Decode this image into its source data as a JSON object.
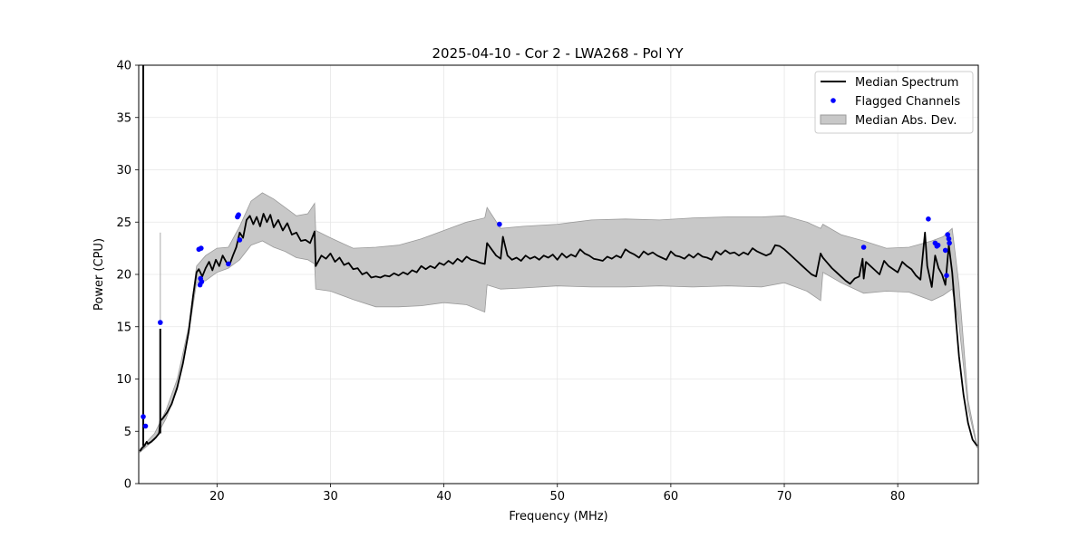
{
  "chart_data": {
    "type": "line",
    "title": "2025-04-10 - Cor 2 - LWA268 - Pol YY",
    "xlabel": "Frequency (MHz)",
    "ylabel": "Power (CPU)",
    "xlim": [
      13.1,
      87.1
    ],
    "ylim": [
      0,
      40
    ],
    "xticks": [
      20,
      30,
      40,
      50,
      60,
      70,
      80
    ],
    "yticks": [
      0,
      5,
      10,
      15,
      20,
      25,
      30,
      35,
      40
    ],
    "grid": true,
    "legend_position": "top-right",
    "legend": [
      {
        "label": "Median Spectrum",
        "kind": "line",
        "color": "#000000"
      },
      {
        "label": "Flagged Channels",
        "kind": "scatter",
        "color": "#0000ff"
      },
      {
        "label": "Median Abs. Dev.",
        "kind": "fill",
        "color": "#b0b0b0"
      }
    ],
    "series": [
      {
        "name": "Median Spectrum",
        "kind": "line",
        "color": "#000000",
        "x": [
          13.2,
          13.4,
          13.6,
          13.7,
          13.8,
          13.9,
          14.2,
          14.6,
          14.9,
          15.0,
          15.2,
          15.6,
          16.0,
          16.5,
          17.0,
          17.5,
          17.9,
          18.2,
          18.4,
          18.7,
          19.0,
          19.3,
          19.6,
          19.9,
          20.2,
          20.5,
          20.8,
          21.1,
          21.4,
          21.7,
          22.0,
          22.3,
          22.6,
          22.9,
          23.2,
          23.5,
          23.8,
          24.1,
          24.4,
          24.7,
          25.0,
          25.4,
          25.8,
          26.2,
          26.6,
          27.0,
          27.4,
          27.8,
          28.2,
          28.6,
          28.7,
          29.2,
          29.6,
          30.0,
          30.4,
          30.8,
          31.2,
          31.6,
          32.0,
          32.4,
          32.8,
          33.2,
          33.6,
          34.0,
          34.4,
          34.8,
          35.2,
          35.6,
          36.0,
          36.4,
          36.8,
          37.2,
          37.6,
          38.0,
          38.4,
          38.8,
          39.2,
          39.6,
          40.0,
          40.4,
          40.8,
          41.2,
          41.6,
          42.0,
          42.4,
          42.8,
          43.2,
          43.6,
          43.8,
          44.2,
          44.6,
          45.0,
          45.2,
          45.6,
          46.0,
          46.4,
          46.8,
          47.2,
          47.6,
          48.0,
          48.4,
          48.8,
          49.2,
          49.6,
          50.0,
          50.4,
          50.8,
          51.2,
          51.6,
          52.0,
          52.4,
          52.8,
          53.2,
          53.6,
          54.0,
          54.4,
          54.8,
          55.2,
          55.6,
          56.0,
          56.4,
          56.8,
          57.2,
          57.6,
          58.0,
          58.4,
          58.8,
          59.2,
          59.6,
          60.0,
          60.4,
          60.8,
          61.2,
          61.6,
          62.0,
          62.4,
          62.8,
          63.2,
          63.6,
          64.0,
          64.4,
          64.8,
          65.2,
          65.6,
          66.0,
          66.4,
          66.8,
          67.2,
          67.6,
          68.0,
          68.4,
          68.8,
          69.2,
          69.6,
          70.0,
          70.4,
          70.8,
          71.2,
          71.6,
          72.0,
          72.4,
          72.8,
          73.2,
          73.4,
          73.8,
          74.2,
          74.6,
          75.0,
          75.4,
          75.8,
          76.2,
          76.6,
          76.9,
          77.0,
          77.2,
          77.6,
          78.0,
          78.4,
          78.8,
          79.2,
          79.6,
          80.0,
          80.4,
          80.8,
          81.2,
          81.6,
          82.0,
          82.4,
          82.6,
          82.8,
          83.0,
          83.3,
          83.6,
          83.9,
          84.2,
          84.5,
          84.8,
          85.1,
          85.4,
          85.8,
          86.2,
          86.6,
          87.0
        ],
        "y": [
          3.1,
          3.4,
          3.6,
          3.8,
          4.0,
          3.8,
          4.0,
          4.4,
          4.8,
          6.0,
          6.2,
          6.8,
          7.6,
          9.2,
          11.5,
          14.5,
          18.0,
          20.2,
          20.5,
          19.8,
          20.6,
          21.2,
          20.4,
          21.4,
          20.8,
          21.8,
          21.2,
          20.9,
          21.8,
          22.6,
          24.0,
          23.5,
          25.2,
          25.6,
          24.8,
          25.5,
          24.6,
          25.8,
          25.0,
          25.7,
          24.5,
          25.2,
          24.2,
          24.9,
          23.8,
          24.0,
          23.2,
          23.3,
          23.0,
          24.1,
          20.8,
          21.8,
          21.5,
          22.0,
          21.2,
          21.6,
          20.9,
          21.1,
          20.5,
          20.6,
          20.0,
          20.2,
          19.7,
          19.8,
          19.7,
          19.9,
          19.8,
          20.1,
          19.9,
          20.2,
          20.0,
          20.4,
          20.2,
          20.8,
          20.5,
          20.8,
          20.6,
          21.1,
          20.9,
          21.3,
          21.0,
          21.5,
          21.2,
          21.7,
          21.4,
          21.3,
          21.1,
          21.0,
          23.0,
          22.4,
          21.8,
          21.5,
          23.6,
          21.8,
          21.4,
          21.6,
          21.3,
          21.8,
          21.5,
          21.7,
          21.4,
          21.8,
          21.6,
          21.9,
          21.4,
          22.0,
          21.6,
          21.9,
          21.7,
          22.4,
          22.0,
          21.8,
          21.5,
          21.4,
          21.3,
          21.7,
          21.5,
          21.8,
          21.6,
          22.4,
          22.1,
          21.9,
          21.6,
          22.2,
          21.9,
          22.1,
          21.8,
          21.6,
          21.4,
          22.2,
          21.8,
          21.7,
          21.5,
          21.9,
          21.6,
          22.0,
          21.7,
          21.6,
          21.4,
          22.2,
          21.9,
          22.3,
          22.0,
          22.1,
          21.8,
          22.1,
          21.9,
          22.5,
          22.2,
          22.0,
          21.8,
          22.0,
          22.8,
          22.7,
          22.4,
          22.0,
          21.6,
          21.2,
          20.8,
          20.4,
          20.0,
          19.8,
          22.0,
          21.6,
          21.1,
          20.6,
          20.2,
          19.8,
          19.4,
          19.1,
          19.6,
          19.8,
          21.5,
          19.6,
          21.2,
          20.8,
          20.4,
          20.0,
          21.3,
          20.8,
          20.5,
          20.2,
          21.2,
          20.8,
          20.5,
          19.9,
          19.5,
          24.0,
          20.8,
          19.8,
          18.8,
          21.8,
          20.6,
          20.0,
          19.0,
          22.8,
          20.2,
          16.0,
          12.2,
          8.5,
          5.8,
          4.2,
          3.6
        ]
      },
      {
        "name": "Median Abs. Dev.",
        "kind": "fill",
        "color": "#b0b0b0",
        "x": [
          13.2,
          14.5,
          15.5,
          16.5,
          17.5,
          18.2,
          19.0,
          20.0,
          21.0,
          22.0,
          23.0,
          24.0,
          25.0,
          26.0,
          27.0,
          28.0,
          28.6,
          28.7,
          30.0,
          32.0,
          34.0,
          36.0,
          38.0,
          40.0,
          42.0,
          43.6,
          43.8,
          45.0,
          47.0,
          50.0,
          53.0,
          56.0,
          59.0,
          62.0,
          65.0,
          68.0,
          70.0,
          72.0,
          73.2,
          73.4,
          75.0,
          77.0,
          79.0,
          81.0,
          83.0,
          84.0,
          84.8,
          85.4,
          86.2,
          87.0
        ],
        "lower": [
          3.0,
          4.2,
          6.2,
          9.0,
          14.3,
          19.2,
          19.4,
          20.2,
          20.6,
          21.4,
          22.8,
          23.2,
          22.6,
          22.2,
          21.6,
          21.4,
          21.0,
          18.6,
          18.4,
          17.6,
          16.9,
          16.9,
          17.0,
          17.3,
          17.1,
          16.4,
          19.0,
          18.6,
          18.7,
          18.9,
          18.8,
          18.8,
          18.9,
          18.8,
          18.9,
          18.8,
          19.2,
          18.4,
          17.5,
          20.2,
          19.2,
          18.2,
          18.4,
          18.3,
          17.5,
          18.0,
          18.6,
          15.2,
          7.2,
          3.4
        ],
        "upper": [
          3.3,
          4.8,
          7.0,
          10.0,
          15.0,
          20.8,
          21.8,
          22.5,
          22.6,
          24.6,
          27.0,
          27.8,
          27.2,
          26.4,
          25.6,
          25.8,
          26.8,
          24.2,
          23.5,
          22.5,
          22.6,
          22.8,
          23.4,
          24.2,
          25.0,
          25.4,
          26.4,
          24.4,
          24.6,
          24.8,
          25.2,
          25.3,
          25.2,
          25.4,
          25.5,
          25.5,
          25.6,
          25.0,
          24.4,
          24.8,
          23.8,
          23.2,
          22.5,
          22.6,
          23.2,
          23.6,
          24.4,
          19.0,
          8.0,
          3.6
        ]
      },
      {
        "name": "Flagged Channels",
        "kind": "scatter",
        "color": "#0000ff",
        "x": [
          13.5,
          13.7,
          15.0,
          18.4,
          18.6,
          18.5,
          18.55,
          18.65,
          21.0,
          21.8,
          21.85,
          21.9,
          22.0,
          44.9,
          77.0,
          82.7,
          83.3,
          83.45,
          83.55,
          84.2,
          84.4,
          84.5,
          84.55,
          84.3
        ],
        "y": [
          6.4,
          5.5,
          15.4,
          22.4,
          22.5,
          19.0,
          19.6,
          19.3,
          21.0,
          25.5,
          25.6,
          25.7,
          23.3,
          24.8,
          22.6,
          25.3,
          23.0,
          22.7,
          22.8,
          22.3,
          23.8,
          23.4,
          23.0,
          19.9
        ]
      }
    ]
  }
}
